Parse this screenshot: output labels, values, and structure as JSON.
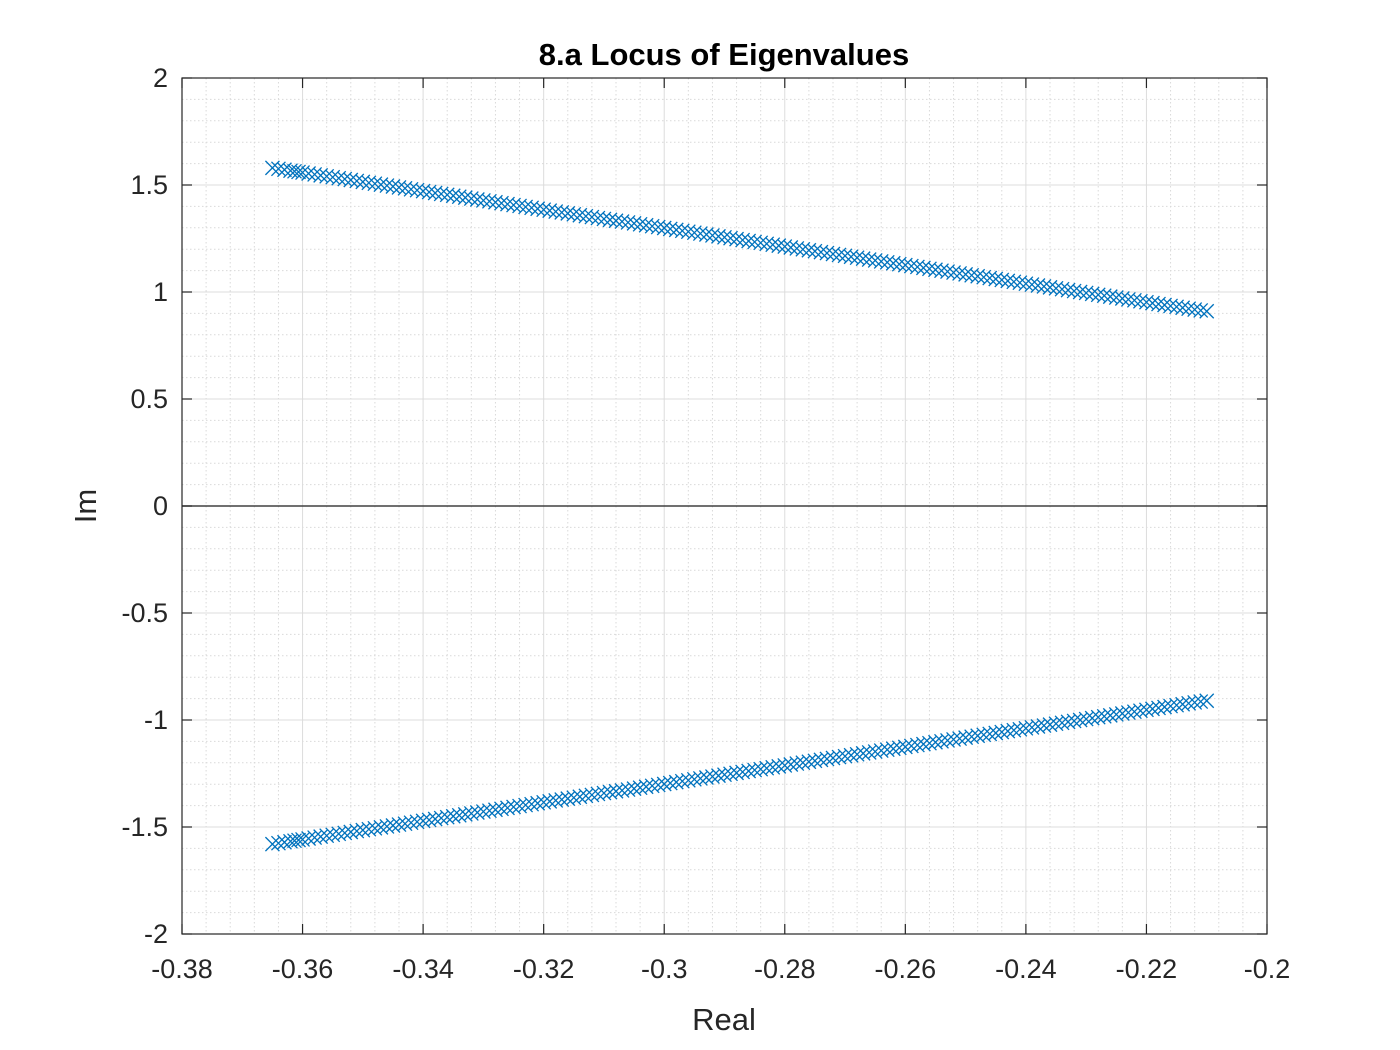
{
  "chart_data": {
    "type": "scatter",
    "title": "8.a Locus of Eigenvalues",
    "xlabel": "Real",
    "ylabel": "Im",
    "xlim": [
      -0.38,
      -0.2
    ],
    "ylim": [
      -2,
      2
    ],
    "xticks": [
      -0.38,
      -0.36,
      -0.34,
      -0.32,
      -0.3,
      -0.28,
      -0.26,
      -0.24,
      -0.22,
      -0.2
    ],
    "xtick_labels": [
      "-0.38",
      "-0.36",
      "-0.34",
      "-0.32",
      "-0.3",
      "-0.28",
      "-0.26",
      "-0.24",
      "-0.22",
      "-0.2"
    ],
    "yticks": [
      -2,
      -1.5,
      -1,
      -0.5,
      0,
      0.5,
      1,
      1.5,
      2
    ],
    "ytick_labels": [
      "-2",
      "-1.5",
      "-1",
      "-0.5",
      "0",
      "0.5",
      "1",
      "1.5",
      "2"
    ],
    "grid": true,
    "minor_grid": true,
    "marker": "x",
    "color": "#0072BD",
    "zero_line": true,
    "series": [
      {
        "x": [
          -0.365,
          -0.362,
          -0.36,
          -0.357,
          -0.354,
          -0.351,
          -0.348,
          -0.345,
          -0.342,
          -0.339,
          -0.336,
          -0.333,
          -0.33,
          -0.327,
          -0.324,
          -0.321,
          -0.318,
          -0.315,
          -0.312,
          -0.309,
          -0.306,
          -0.303,
          -0.3,
          -0.297,
          -0.294,
          -0.291,
          -0.288,
          -0.285,
          -0.282,
          -0.279,
          -0.276,
          -0.273,
          -0.27,
          -0.267,
          -0.264,
          -0.261,
          -0.258,
          -0.255,
          -0.252,
          -0.249,
          -0.246,
          -0.243,
          -0.24,
          -0.237,
          -0.234,
          -0.231,
          -0.228,
          -0.225,
          -0.222,
          -0.219,
          -0.216,
          -0.213,
          -0.21
        ],
        "y": [
          1.58,
          1.567,
          1.558,
          1.545,
          1.532,
          1.519,
          1.506,
          1.493,
          1.48,
          1.467,
          1.454,
          1.441,
          1.428,
          1.415,
          1.402,
          1.389,
          1.376,
          1.363,
          1.35,
          1.337,
          1.325,
          1.312,
          1.299,
          1.286,
          1.273,
          1.26,
          1.247,
          1.234,
          1.221,
          1.208,
          1.195,
          1.182,
          1.169,
          1.156,
          1.143,
          1.13,
          1.117,
          1.104,
          1.091,
          1.078,
          1.065,
          1.052,
          1.039,
          1.026,
          1.013,
          1.0,
          0.987,
          0.974,
          0.961,
          0.948,
          0.935,
          0.922,
          0.91
        ]
      },
      {
        "x": [
          -0.365,
          -0.362,
          -0.36,
          -0.357,
          -0.354,
          -0.351,
          -0.348,
          -0.345,
          -0.342,
          -0.339,
          -0.336,
          -0.333,
          -0.33,
          -0.327,
          -0.324,
          -0.321,
          -0.318,
          -0.315,
          -0.312,
          -0.309,
          -0.306,
          -0.303,
          -0.3,
          -0.297,
          -0.294,
          -0.291,
          -0.288,
          -0.285,
          -0.282,
          -0.279,
          -0.276,
          -0.273,
          -0.27,
          -0.267,
          -0.264,
          -0.261,
          -0.258,
          -0.255,
          -0.252,
          -0.249,
          -0.246,
          -0.243,
          -0.24,
          -0.237,
          -0.234,
          -0.231,
          -0.228,
          -0.225,
          -0.222,
          -0.219,
          -0.216,
          -0.213,
          -0.21
        ],
        "y": [
          -1.58,
          -1.567,
          -1.558,
          -1.545,
          -1.532,
          -1.519,
          -1.506,
          -1.493,
          -1.48,
          -1.467,
          -1.454,
          -1.441,
          -1.428,
          -1.415,
          -1.402,
          -1.389,
          -1.376,
          -1.363,
          -1.35,
          -1.337,
          -1.325,
          -1.312,
          -1.299,
          -1.286,
          -1.273,
          -1.26,
          -1.247,
          -1.234,
          -1.221,
          -1.208,
          -1.195,
          -1.182,
          -1.169,
          -1.156,
          -1.143,
          -1.13,
          -1.117,
          -1.104,
          -1.091,
          -1.078,
          -1.065,
          -1.052,
          -1.039,
          -1.026,
          -1.013,
          -1.0,
          -0.987,
          -0.974,
          -0.961,
          -0.948,
          -0.935,
          -0.922,
          -0.91
        ]
      }
    ]
  }
}
